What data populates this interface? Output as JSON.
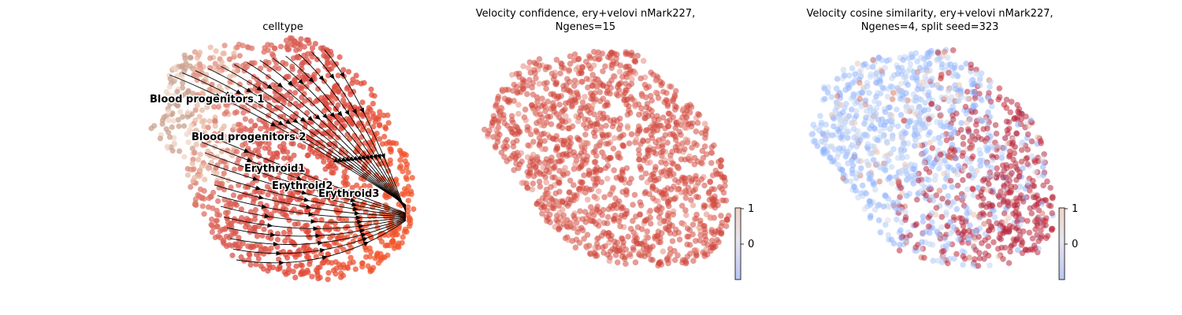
{
  "chart_data": [
    {
      "type": "scatter",
      "title": "celltype",
      "subtype": "embedding scatter with velocity stream arrows",
      "colors": {
        "Blood progenitors 1": "#c9a28f",
        "Blood progenitors 2": "#e8b9a4",
        "Erythroid1": "#d9534a",
        "Erythroid2": "#e04a3a",
        "Erythroid3": "#f2552c"
      },
      "cluster_labels": [
        "Blood progenitors 1",
        "Blood progenitors 2",
        "Erythroid1",
        "Erythroid2",
        "Erythroid3"
      ],
      "stream_arrows": true,
      "legend": "on data",
      "grid": false
    },
    {
      "type": "scatter",
      "title_lines": [
        "Velocity confidence, ery+velovi nMark227,",
        "Ngenes=15"
      ],
      "colormap": "coolwarm",
      "point_color": "#d0483e",
      "colorbar": {
        "ticks": [
          "1",
          "0"
        ]
      },
      "grid": false
    },
    {
      "type": "scatter",
      "title_lines": [
        "Velocity cosine similarity, ery+velovi nMark227,",
        "Ngenes=4, split seed=323"
      ],
      "colormap": "coolwarm",
      "point_colors": [
        "#8fb1fe",
        "#aac7fd",
        "#c5d6f2",
        "#dcdde6",
        "#e9c5b5",
        "#d97a68",
        "#c0283a",
        "#b32b45"
      ],
      "colorbar": {
        "ticks": [
          "1",
          "0"
        ]
      },
      "grid": false
    }
  ]
}
